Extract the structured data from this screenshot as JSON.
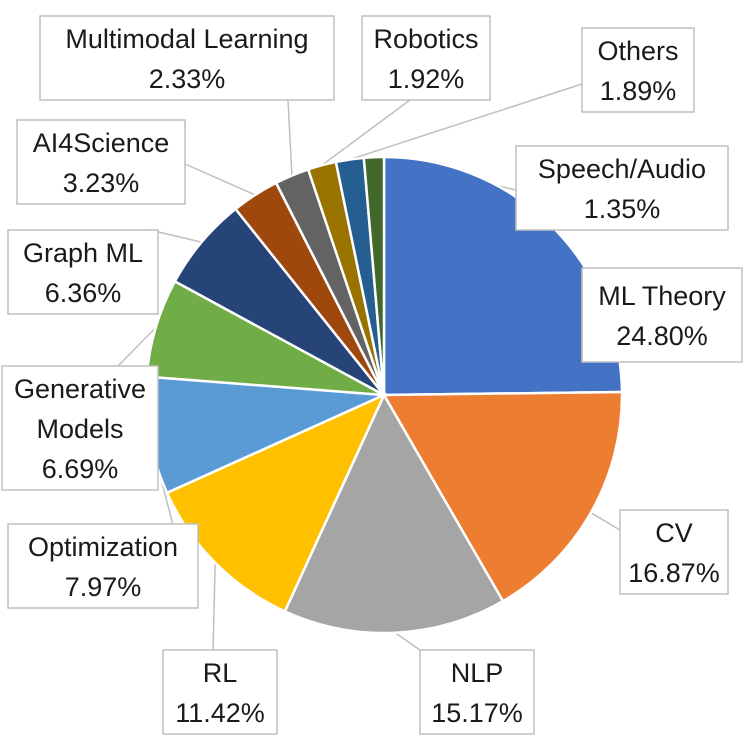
{
  "chart_data": {
    "type": "pie",
    "title": "",
    "start_angle_deg": 0,
    "direction": "clockwise",
    "legend": "none",
    "data_labels": "callout boxes with leader lines",
    "slices": [
      {
        "label": "ML Theory",
        "value": 24.8,
        "value_text": "24.80%",
        "color": "#4472C4"
      },
      {
        "label": "CV",
        "value": 16.87,
        "value_text": "16.87%",
        "color": "#ED7D31"
      },
      {
        "label": "NLP",
        "value": 15.17,
        "value_text": "15.17%",
        "color": "#A5A5A5"
      },
      {
        "label": "RL",
        "value": 11.42,
        "value_text": "11.42%",
        "color": "#FFC000"
      },
      {
        "label": "Optimization",
        "value": 7.97,
        "value_text": "7.97%",
        "color": "#5B9BD5"
      },
      {
        "label": "Generative Models",
        "label_lines": [
          "Generative",
          "Models"
        ],
        "value": 6.69,
        "value_text": "6.69%",
        "color": "#70AD47"
      },
      {
        "label": "Graph ML",
        "value": 6.36,
        "value_text": "6.36%",
        "color": "#264478"
      },
      {
        "label": "AI4Science",
        "value": 3.23,
        "value_text": "3.23%",
        "color": "#9E480E"
      },
      {
        "label": "Multimodal Learning",
        "value": 2.33,
        "value_text": "2.33%",
        "color": "#636363"
      },
      {
        "label": "Robotics",
        "value": 1.92,
        "value_text": "1.92%",
        "color": "#997300"
      },
      {
        "label": "Others",
        "value": 1.89,
        "value_text": "1.89%",
        "color": "#255E91"
      },
      {
        "label": "Speech/Audio",
        "value": 1.35,
        "value_text": "1.35%",
        "color": "#43682B"
      }
    ]
  }
}
